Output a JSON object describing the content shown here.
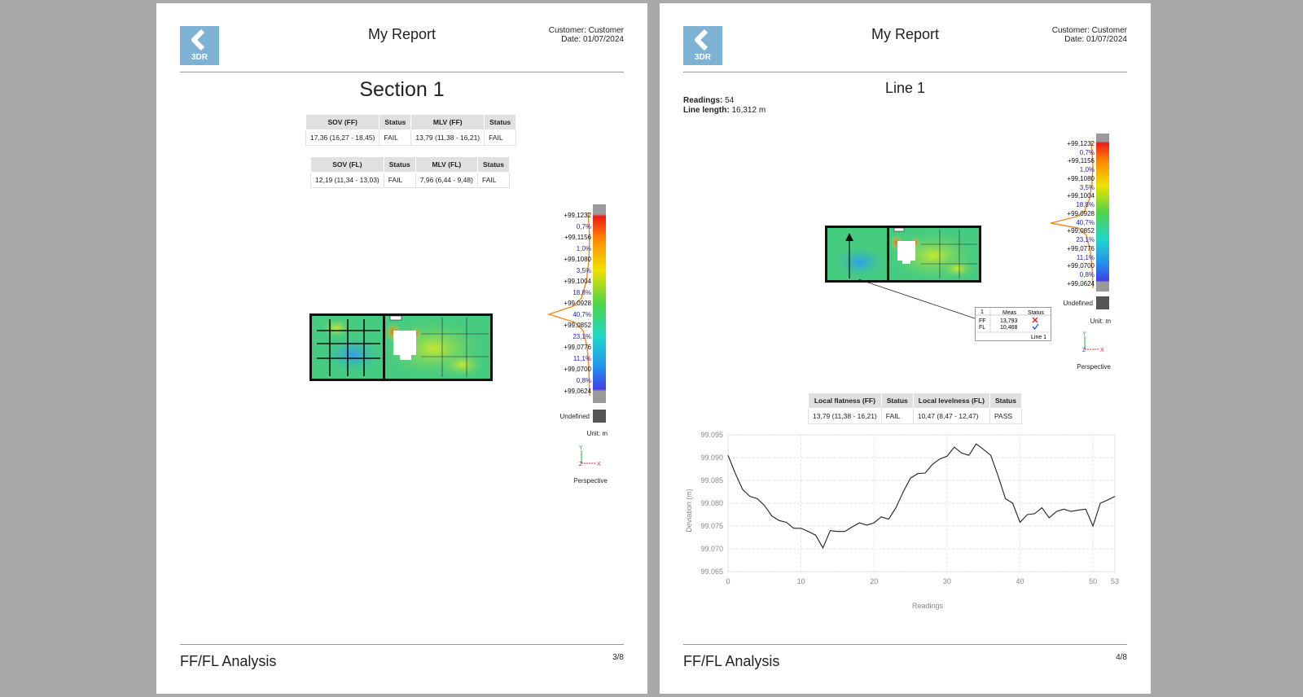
{
  "header": {
    "logo_text": "3DR",
    "title": "My Report",
    "customer": "Customer: Customer",
    "date": "Date: 01/07/2024"
  },
  "footer": {
    "title": "FF/FL Analysis"
  },
  "left_page": {
    "section_title": "Section 1",
    "table_ff": {
      "headers": [
        "SOV (FF)",
        "Status",
        "MLV (FF)",
        "Status"
      ],
      "row": [
        "17,36 (16,27 - 18,45)",
        "FAIL",
        "13,79 (11,38 - 16,21)",
        "FAIL"
      ]
    },
    "table_fl": {
      "headers": [
        "SOV (FL)",
        "Status",
        "MLV (FL)",
        "Status"
      ],
      "row": [
        "12,19 (11,34 - 13,03)",
        "FAIL",
        "7,96 (6,44 - 9,48)",
        "FAIL"
      ]
    },
    "page_number": "3/8"
  },
  "right_page": {
    "line_title": "Line 1",
    "readings_label": "Readings:",
    "readings_value": "54",
    "length_label": "Line length:",
    "length_value": "16,312 m",
    "callout": {
      "headers": [
        "1",
        "Meas",
        "Status"
      ],
      "rows": [
        [
          "FF",
          "13,793"
        ],
        [
          "FL",
          "10,468"
        ]
      ],
      "footer": "Line 1"
    },
    "table": {
      "headers": [
        "Local flatness (FF)",
        "Status",
        "Local levelness (FL)",
        "Status"
      ],
      "row": [
        "13,79 (11,38 - 16,21)",
        "FAIL",
        "10,47 (8,47 - 12,47)",
        "PASS"
      ]
    },
    "page_number": "4/8"
  },
  "legend": {
    "labels": [
      "+99,1232",
      "0,7%",
      "+99,1156",
      "1,0%",
      "+99,1080",
      "3,5%",
      "+99,1004",
      "18,8%",
      "+99,0928",
      "40,7%",
      "+99,0852",
      "23,1%",
      "+99,0776",
      "11,1%",
      "+99,0700",
      "0,8%",
      "+99,0624"
    ],
    "undefined": "Undefined",
    "unit": "Unit: m",
    "axis_y": "Y",
    "axis_z": "Z",
    "axis_x": "X",
    "view": "Perspective"
  },
  "chart_data": {
    "type": "line",
    "title": "",
    "xlabel": "Readings",
    "ylabel": "Deviation (m)",
    "xlim": [
      0,
      53
    ],
    "ylim": [
      99.065,
      99.095
    ],
    "xticks": [
      0,
      10,
      20,
      30,
      40,
      50,
      53
    ],
    "yticks": [
      99.095,
      99.09,
      99.085,
      99.08,
      99.075,
      99.07,
      99.065
    ],
    "grid": true,
    "x": [
      0,
      1,
      2,
      3,
      4,
      5,
      6,
      7,
      8,
      9,
      10,
      11,
      12,
      13,
      14,
      15,
      16,
      17,
      18,
      19,
      20,
      21,
      22,
      23,
      24,
      25,
      26,
      27,
      28,
      29,
      30,
      31,
      32,
      33,
      34,
      35,
      36,
      37,
      38,
      39,
      40,
      41,
      42,
      43,
      44,
      45,
      46,
      47,
      48,
      49,
      50,
      51,
      52,
      53
    ],
    "y": [
      99.0905,
      99.0865,
      99.083,
      99.0815,
      99.081,
      99.0795,
      99.0772,
      99.0762,
      99.0758,
      99.0745,
      99.0745,
      99.0738,
      99.073,
      99.0702,
      99.074,
      99.0738,
      99.0738,
      99.0748,
      99.0757,
      99.0752,
      99.0757,
      99.077,
      99.0765,
      99.079,
      99.0825,
      99.0855,
      99.0865,
      99.0866,
      99.0885,
      99.0897,
      99.0903,
      99.0923,
      99.091,
      99.0905,
      99.093,
      99.0918,
      99.0905,
      99.086,
      99.081,
      99.08,
      99.0758,
      99.0775,
      99.0777,
      99.079,
      99.0768,
      99.0782,
      99.0787,
      99.0782,
      99.0785,
      99.0787,
      99.075,
      99.08,
      99.0807,
      99.0815
    ]
  }
}
